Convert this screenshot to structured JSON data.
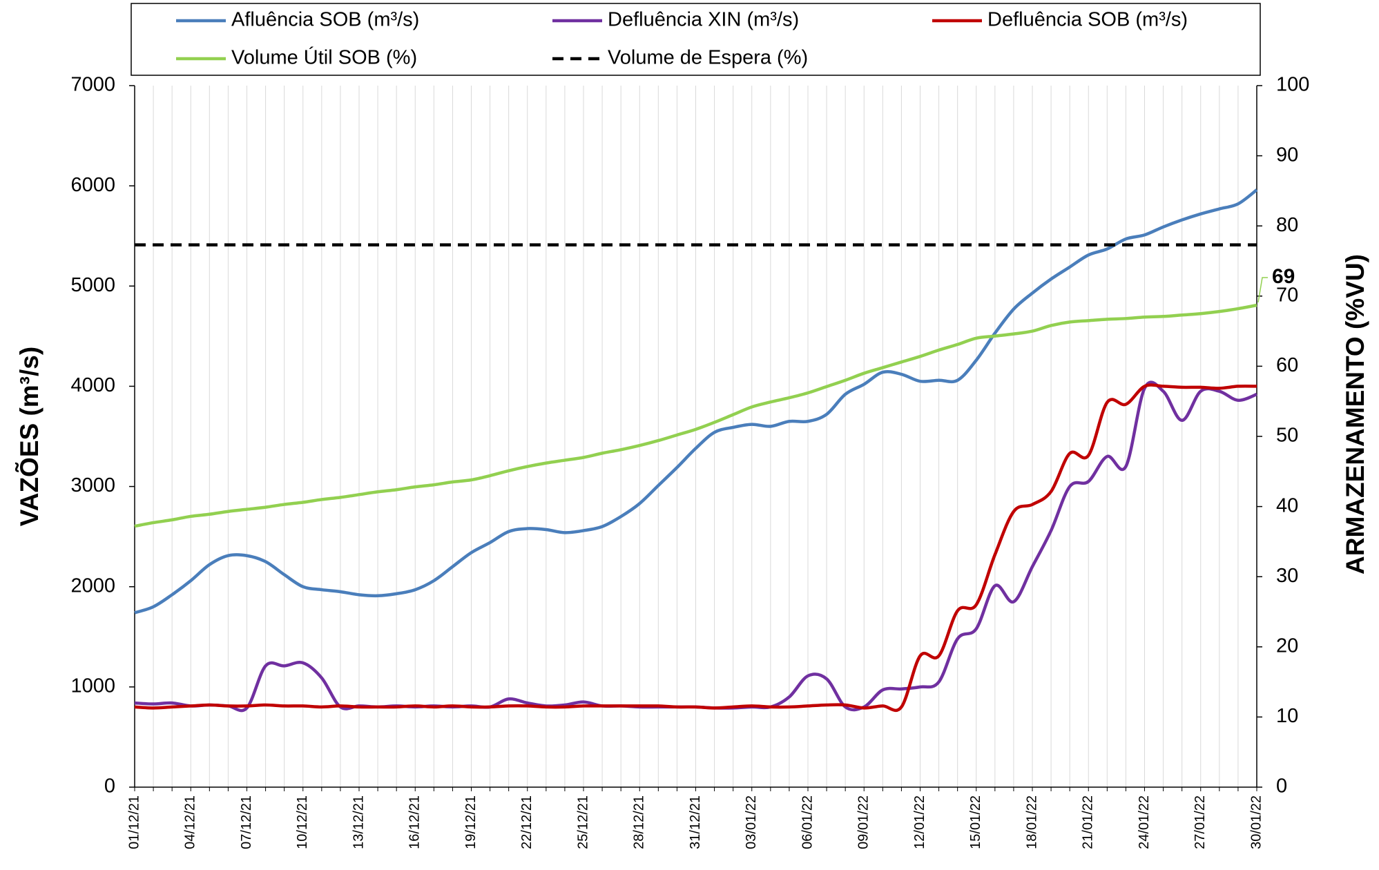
{
  "chart_data": {
    "type": "line",
    "y_label": "VAZÕES (m³/s)",
    "y2_label": "ARMAZENAMENTO (%VU)",
    "categories": [
      "01/12/21",
      null,
      null,
      "04/12/21",
      null,
      null,
      "07/12/21",
      null,
      null,
      "10/12/21",
      null,
      null,
      "13/12/21",
      null,
      null,
      "16/12/21",
      null,
      null,
      "19/12/21",
      null,
      null,
      "22/12/21",
      null,
      null,
      "25/12/21",
      null,
      null,
      "28/12/21",
      null,
      null,
      "31/12/21",
      null,
      null,
      "03/01/22",
      null,
      null,
      "06/01/22",
      null,
      null,
      "09/01/22",
      null,
      null,
      "12/01/22",
      null,
      null,
      "15/01/22",
      null,
      null,
      "18/01/22",
      null,
      null,
      "21/01/22",
      null,
      null,
      "24/01/22",
      null,
      null,
      "27/01/22",
      null,
      null,
      "30/01/22"
    ],
    "ylim": [
      0,
      7000
    ],
    "yticks": [
      0,
      1000,
      2000,
      3000,
      4000,
      5000,
      6000,
      7000
    ],
    "y2lim": [
      0,
      100
    ],
    "y2ticks": [
      0,
      10,
      20,
      30,
      40,
      50,
      60,
      70,
      80,
      90,
      100
    ],
    "grid": true,
    "series": [
      {
        "name": "Afluência SOB (m³/s)",
        "color": "#4a7ebb",
        "values": [
          1740,
          1800,
          1920,
          2060,
          2220,
          2310,
          2310,
          2250,
          2120,
          2000,
          1970,
          1950,
          1920,
          1910,
          1930,
          1970,
          2060,
          2200,
          2340,
          2440,
          2550,
          2580,
          2570,
          2540,
          2560,
          2600,
          2700,
          2830,
          3010,
          3190,
          3380,
          3540,
          3590,
          3620,
          3600,
          3650,
          3650,
          3720,
          3920,
          4020,
          4140,
          4120,
          4050,
          4060,
          4060,
          4260,
          4530,
          4770,
          4930,
          5070,
          5190,
          5310,
          5370,
          5470,
          5510,
          5590,
          5660,
          5720,
          5770,
          5820,
          5960
        ]
      },
      {
        "name": "Defluência XIN (m³/s)",
        "color": "#7030a0",
        "values": [
          840,
          830,
          840,
          810,
          820,
          810,
          790,
          1210,
          1210,
          1240,
          1090,
          800,
          810,
          800,
          810,
          800,
          810,
          800,
          810,
          800,
          880,
          840,
          810,
          820,
          850,
          810,
          810,
          800,
          800,
          800,
          800,
          790,
          790,
          800,
          800,
          900,
          1110,
          1080,
          800,
          800,
          970,
          980,
          1000,
          1050,
          1480,
          1580,
          2010,
          1850,
          2200,
          2560,
          3000,
          3050,
          3300,
          3200,
          3980,
          3950,
          3660,
          3950,
          3950,
          3860,
          3920
        ]
      },
      {
        "name": "Defluência SOB (m³/s)",
        "color": "#c00000",
        "values": [
          800,
          790,
          800,
          810,
          820,
          810,
          810,
          820,
          810,
          810,
          800,
          810,
          800,
          800,
          800,
          810,
          800,
          810,
          800,
          800,
          810,
          810,
          800,
          800,
          810,
          810,
          810,
          810,
          810,
          800,
          800,
          790,
          800,
          810,
          800,
          800,
          810,
          820,
          820,
          790,
          810,
          800,
          1310,
          1310,
          1760,
          1820,
          2320,
          2750,
          2820,
          2950,
          3330,
          3310,
          3840,
          3820,
          4000,
          4000,
          3990,
          3990,
          3980,
          4000,
          4000
        ]
      },
      {
        "name": "Volume Útil SOB (%)",
        "color": "#92d050",
        "axis": "y2",
        "values": [
          37.2,
          37.7,
          38.1,
          38.6,
          38.9,
          39.3,
          39.6,
          39.9,
          40.3,
          40.6,
          41.0,
          41.3,
          41.7,
          42.1,
          42.4,
          42.8,
          43.1,
          43.5,
          43.8,
          44.4,
          45.1,
          45.7,
          46.2,
          46.6,
          47.0,
          47.6,
          48.1,
          48.7,
          49.4,
          50.2,
          51.0,
          52.0,
          53.1,
          54.2,
          54.9,
          55.5,
          56.2,
          57.1,
          58.0,
          59.0,
          59.8,
          60.6,
          61.4,
          62.3,
          63.1,
          64.0,
          64.3,
          64.6,
          65.0,
          65.8,
          66.3,
          66.5,
          66.7,
          66.8,
          67.0,
          67.1,
          67.3,
          67.5,
          67.8,
          68.2,
          68.7
        ],
        "value_labels": [
          null,
          null,
          null,
          null,
          null,
          null,
          null,
          null,
          null,
          null,
          null,
          null,
          null,
          null,
          null,
          null,
          null,
          null,
          null,
          null,
          null,
          null,
          null,
          null,
          null,
          null,
          null,
          null,
          null,
          null,
          null,
          null,
          null,
          null,
          null,
          null,
          null,
          null,
          null,
          null,
          null,
          null,
          null,
          null,
          null,
          null,
          null,
          null,
          null,
          null,
          null,
          null,
          null,
          null,
          null,
          null,
          null,
          null,
          null,
          null,
          "69"
        ]
      },
      {
        "name": "Volume de Espera (%)",
        "color": "#000000",
        "axis": "y2",
        "dashed": true,
        "values": [
          77.3,
          77.3,
          77.3,
          77.3,
          77.3,
          77.3,
          77.3,
          77.3,
          77.3,
          77.3,
          77.3,
          77.3,
          77.3,
          77.3,
          77.3,
          77.3,
          77.3,
          77.3,
          77.3,
          77.3,
          77.3,
          77.3,
          77.3,
          77.3,
          77.3,
          77.3,
          77.3,
          77.3,
          77.3,
          77.3,
          77.3,
          77.3,
          77.3,
          77.3,
          77.3,
          77.3,
          77.3,
          77.3,
          77.3,
          77.3,
          77.3,
          77.3,
          77.3,
          77.3,
          77.3,
          77.3,
          77.3,
          77.3,
          77.3,
          77.3,
          77.3,
          77.3,
          77.3,
          77.3,
          77.3,
          77.3,
          77.3,
          77.3,
          77.3,
          77.3,
          77.3
        ]
      }
    ]
  }
}
